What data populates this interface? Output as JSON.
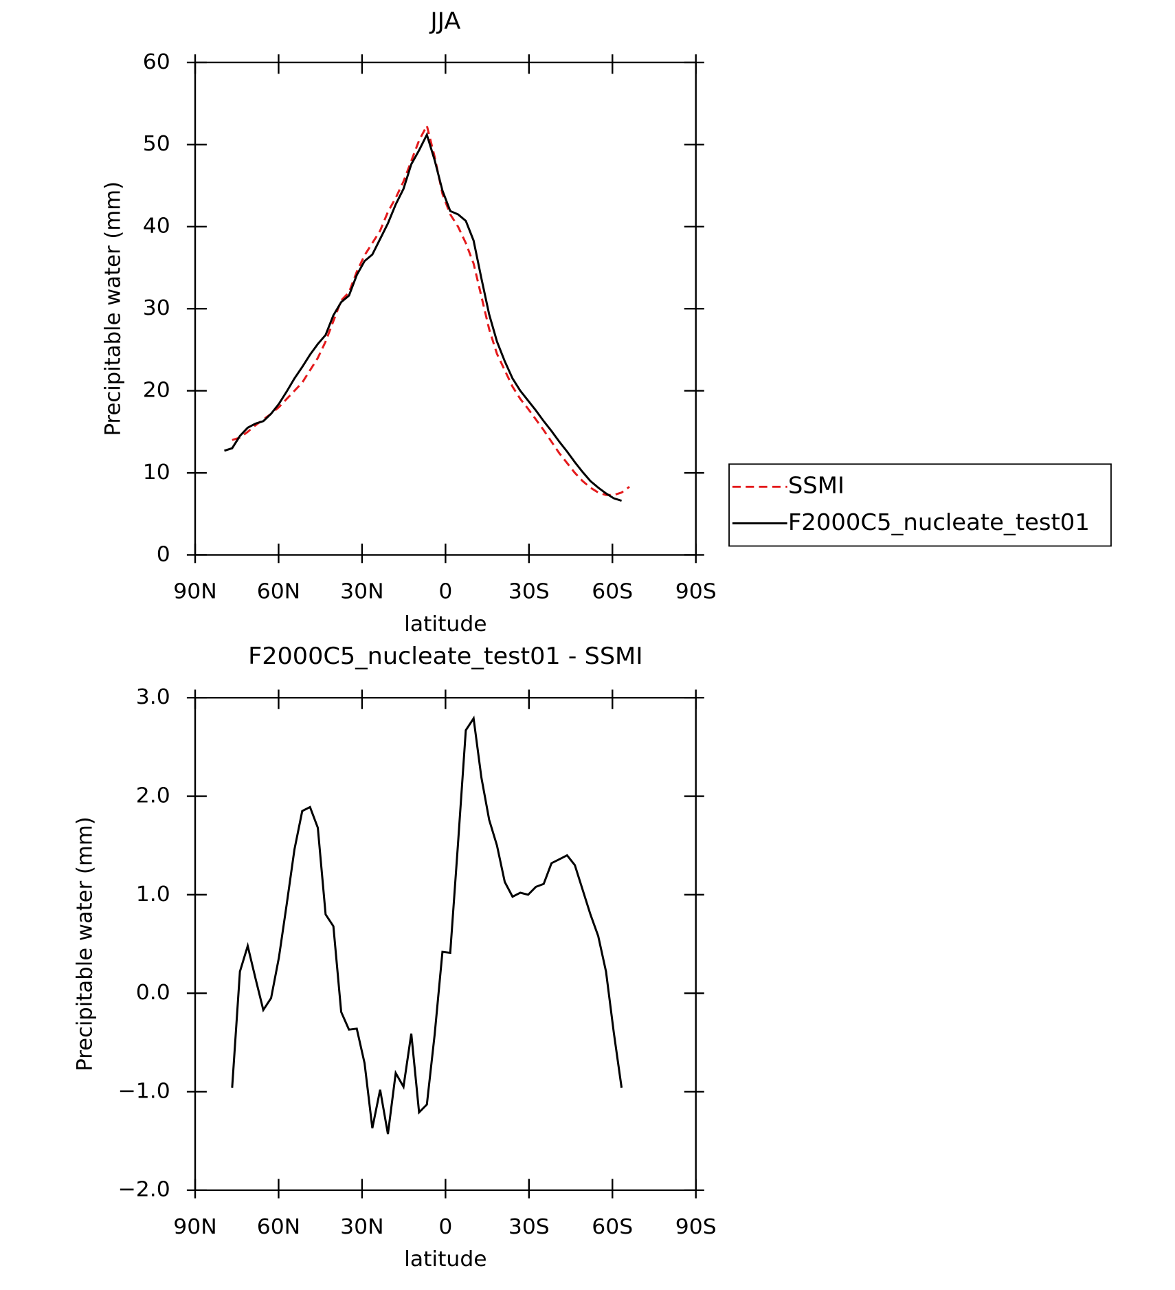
{
  "chart_data": [
    {
      "type": "line",
      "title": "JJA",
      "xlabel": "latitude",
      "ylabel": "Precipitable water (mm)",
      "xlim": [
        90,
        -90
      ],
      "xticks": [
        {
          "value": 90,
          "label": "90N"
        },
        {
          "value": 60,
          "label": "60N"
        },
        {
          "value": 30,
          "label": "30N"
        },
        0,
        {
          "value": -30,
          "label": "30S"
        },
        {
          "value": -60,
          "label": "60S"
        },
        {
          "value": -90,
          "label": "90S"
        }
      ],
      "ylim": [
        0,
        60
      ],
      "yticks": [
        0,
        10,
        20,
        30,
        40,
        50,
        60
      ],
      "legend": "right",
      "series": [
        {
          "name": "SSMI",
          "color": "#e41a1c",
          "linestyle": "dashed",
          "x": [
            76.7,
            73.9,
            71.1,
            68.3,
            65.5,
            62.7,
            59.9,
            57.1,
            54.3,
            51.5,
            48.7,
            45.9,
            43.1,
            40.3,
            37.5,
            34.7,
            31.9,
            29.1,
            26.3,
            23.5,
            20.7,
            17.9,
            15.1,
            12.3,
            9.5,
            6.7,
            3.9,
            1.1,
            -1.7,
            -4.5,
            -7.3,
            -10.1,
            -12.9,
            -15.7,
            -18.5,
            -21.3,
            -24.1,
            -26.9,
            -29.7,
            -32.5,
            -35.3,
            -38.1,
            -40.9,
            -43.7,
            -46.5,
            -49.3,
            -52.1,
            -54.9,
            -57.7,
            -60.5,
            -63.3,
            -66.1
          ],
          "values": [
            14.0,
            14.3,
            15.0,
            15.8,
            16.5,
            17.2,
            18.0,
            19.0,
            20.0,
            21.0,
            22.5,
            24.0,
            26.0,
            28.5,
            31.0,
            32.0,
            34.5,
            36.5,
            38.0,
            39.5,
            41.8,
            43.5,
            45.5,
            48.0,
            50.5,
            52.3,
            48.5,
            44.0,
            41.5,
            40.0,
            38.0,
            35.5,
            31.5,
            27.5,
            24.5,
            22.5,
            20.5,
            19.0,
            17.8,
            16.5,
            15.2,
            13.8,
            12.4,
            11.2,
            10.0,
            9.0,
            8.2,
            7.6,
            7.3,
            7.3,
            7.6,
            8.3
          ]
        },
        {
          "name": "F2000C5_nucleate_test01",
          "color": "#000000",
          "linestyle": "solid",
          "x": [
            79.5,
            76.7,
            73.9,
            71.1,
            68.3,
            65.5,
            62.7,
            59.9,
            57.1,
            54.3,
            51.5,
            48.7,
            45.9,
            43.1,
            40.3,
            37.5,
            34.7,
            31.9,
            29.1,
            26.3,
            23.5,
            20.7,
            17.9,
            15.1,
            12.3,
            9.5,
            6.7,
            3.9,
            1.1,
            -1.7,
            -4.5,
            -7.3,
            -10.1,
            -12.9,
            -15.7,
            -18.5,
            -21.3,
            -24.1,
            -26.9,
            -29.7,
            -32.5,
            -35.3,
            -38.1,
            -40.9,
            -43.7,
            -46.5,
            -49.3,
            -52.1,
            -54.9,
            -57.7,
            -60.5,
            -63.3
          ],
          "values": [
            12.7,
            13.0,
            14.5,
            15.5,
            16.0,
            16.3,
            17.2,
            18.4,
            19.9,
            21.5,
            22.9,
            24.4,
            25.7,
            26.8,
            29.2,
            30.8,
            31.6,
            34.1,
            35.8,
            36.6,
            38.5,
            40.4,
            42.7,
            44.6,
            47.6,
            49.3,
            51.2,
            48.1,
            44.4,
            41.9,
            41.5,
            40.7,
            38.3,
            33.7,
            29.3,
            26.0,
            23.6,
            21.5,
            20.0,
            18.8,
            17.6,
            16.3,
            15.1,
            13.8,
            12.6,
            11.3,
            10.1,
            9.0,
            8.2,
            7.5,
            6.9,
            6.6
          ]
        }
      ]
    },
    {
      "type": "line",
      "title": "F2000C5_nucleate_test01 - SSMI",
      "xlabel": "latitude",
      "ylabel": "Precipitable water (mm)",
      "xlim": [
        90,
        -90
      ],
      "xticks": [
        {
          "value": 90,
          "label": "90N"
        },
        {
          "value": 60,
          "label": "60N"
        },
        {
          "value": 30,
          "label": "30N"
        },
        0,
        {
          "value": -30,
          "label": "30S"
        },
        {
          "value": -60,
          "label": "60S"
        },
        {
          "value": -90,
          "label": "90S"
        }
      ],
      "ylim": [
        -2,
        3
      ],
      "yticks": [
        {
          "value": -2,
          "label": "−2.0"
        },
        {
          "value": -1,
          "label": "−1.0"
        },
        {
          "value": 0,
          "label": "0.0"
        },
        {
          "value": 1,
          "label": "1.0"
        },
        {
          "value": 2,
          "label": "2.0"
        },
        {
          "value": 3,
          "label": "3.0"
        }
      ],
      "color": "#000000",
      "x": [
        76.7,
        73.9,
        71.1,
        68.3,
        65.5,
        62.7,
        59.9,
        57.1,
        54.3,
        51.5,
        48.7,
        45.9,
        43.1,
        40.3,
        37.5,
        34.7,
        31.9,
        29.1,
        26.3,
        23.5,
        20.7,
        17.9,
        15.1,
        12.3,
        9.5,
        6.7,
        3.9,
        1.1,
        -1.7,
        -4.5,
        -7.3,
        -10.1,
        -12.9,
        -15.7,
        -18.5,
        -21.3,
        -24.1,
        -26.9,
        -29.7,
        -32.5,
        -35.3,
        -38.1,
        -40.9,
        -43.7,
        -46.5,
        -49.3,
        -52.1,
        -54.9,
        -57.7,
        -60.5,
        -63.3
      ],
      "values": [
        -0.96,
        0.22,
        0.48,
        0.15,
        -0.17,
        -0.05,
        0.36,
        0.9,
        1.46,
        1.85,
        1.89,
        1.68,
        0.8,
        0.68,
        -0.19,
        -0.37,
        -0.36,
        -0.71,
        -1.37,
        -0.98,
        -1.43,
        -0.81,
        -0.95,
        -0.41,
        -1.21,
        -1.13,
        -0.42,
        0.42,
        0.41,
        1.52,
        2.67,
        2.79,
        2.19,
        1.76,
        1.5,
        1.13,
        0.98,
        1.02,
        1.0,
        1.08,
        1.11,
        1.32,
        1.36,
        1.4,
        1.3,
        1.05,
        0.8,
        0.58,
        0.22,
        -0.4,
        -0.96
      ]
    }
  ]
}
